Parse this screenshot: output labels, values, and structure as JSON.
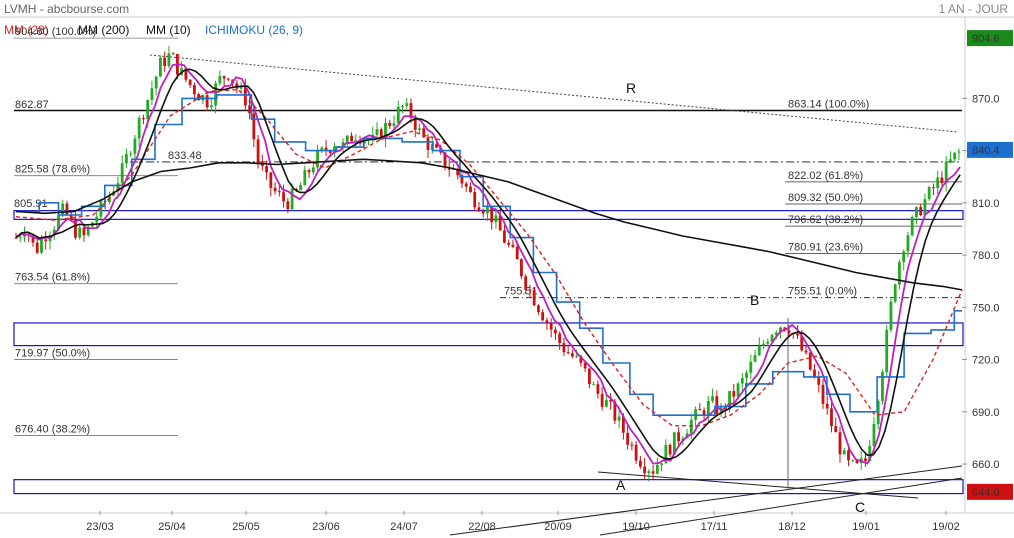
{
  "header": {
    "title": "LVMH - abcbourse.com",
    "period": "1 AN - JOUR",
    "legend": [
      {
        "label": "MM (28)",
        "color": "#e02020"
      },
      {
        "label": "MM (200)",
        "color": "#111111"
      },
      {
        "label": "MM (10)",
        "color": "#111111"
      },
      {
        "label": "ICHIMOKU (26, 9)",
        "color": "#1f6fd0"
      }
    ]
  },
  "chart_data": {
    "type": "candlestick",
    "x_ticks": [
      "23/03",
      "25/04",
      "25/05",
      "23/06",
      "24/07",
      "22/08",
      "20/09",
      "19/10",
      "17/11",
      "18/12",
      "19/01",
      "19/02"
    ],
    "y_ticks": [
      "870.0",
      "840.0",
      "810.0",
      "780.0",
      "750.0",
      "720.0",
      "690.0",
      "660.0"
    ],
    "y_range": [
      633,
      915
    ],
    "price_tags": [
      {
        "text": "904.6",
        "value": 904.6,
        "bg": "#1a8a1a"
      },
      {
        "text": "840.4",
        "value": 840.4,
        "bg": "#1f6fd0"
      },
      {
        "text": "644.0",
        "value": 644.0,
        "bg": "#d01010"
      }
    ],
    "fib_left": [
      {
        "label": "904.60  (100.0%)",
        "value": 904.6
      },
      {
        "label": "862.87",
        "value": 862.87
      },
      {
        "label": "825.58  (78.6%)",
        "value": 825.58
      },
      {
        "label": "763.54  (61.8%)",
        "value": 763.54
      },
      {
        "label": "719.97  (50.0%)",
        "value": 719.97
      },
      {
        "label": "676.40  (38.2%)",
        "value": 676.4
      }
    ],
    "fib_right": [
      {
        "label": "863.14  (100.0%)",
        "value": 863.14
      },
      {
        "label": "822.02  (61.8%)",
        "value": 822.02
      },
      {
        "label": "809.32  (50.0%)",
        "value": 809.32
      },
      {
        "label": "796.62  (38.2%)",
        "value": 796.62
      },
      {
        "label": "780.91  (23.6%)",
        "value": 780.91
      },
      {
        "label": "755.51  (0.0%)",
        "value": 755.51
      }
    ],
    "level_labels": [
      {
        "text": "833.48",
        "value": 833.48
      },
      {
        "text": "805.91",
        "value": 805.91
      },
      {
        "text": "755.51",
        "value": 755.51
      }
    ],
    "wave_labels": [
      "R",
      "A",
      "B",
      "C"
    ],
    "zones": [
      {
        "from": 800.5,
        "to": 805.5
      },
      {
        "from": 728,
        "to": 741
      },
      {
        "from": 643,
        "to": 651
      }
    ],
    "series": {
      "close": [
        [
          0,
          790
        ],
        [
          5,
          797
        ],
        [
          10,
          782
        ],
        [
          15,
          792
        ],
        [
          20,
          798
        ],
        [
          25,
          806
        ],
        [
          30,
          795
        ],
        [
          35,
          790
        ],
        [
          40,
          800
        ],
        [
          45,
          808
        ],
        [
          50,
          818
        ],
        [
          55,
          828
        ],
        [
          60,
          845
        ],
        [
          65,
          860
        ],
        [
          70,
          875
        ],
        [
          75,
          890
        ],
        [
          80,
          895
        ],
        [
          85,
          885
        ],
        [
          90,
          878
        ],
        [
          95,
          872
        ],
        [
          100,
          868
        ],
        [
          105,
          880
        ],
        [
          110,
          885
        ],
        [
          115,
          875
        ],
        [
          120,
          868
        ],
        [
          125,
          835
        ],
        [
          130,
          822
        ],
        [
          135,
          815
        ],
        [
          140,
          810
        ],
        [
          145,
          815
        ],
        [
          150,
          825
        ],
        [
          155,
          835
        ],
        [
          160,
          840
        ],
        [
          165,
          845
        ],
        [
          170,
          842
        ],
        [
          175,
          850
        ],
        [
          180,
          848
        ],
        [
          185,
          845
        ],
        [
          190,
          852
        ],
        [
          195,
          858
        ],
        [
          200,
          865
        ],
        [
          205,
          860
        ],
        [
          210,
          848
        ],
        [
          215,
          842
        ],
        [
          220,
          835
        ],
        [
          225,
          830
        ],
        [
          230,
          825
        ],
        [
          235,
          815
        ],
        [
          240,
          810
        ],
        [
          245,
          805
        ],
        [
          250,
          795
        ],
        [
          255,
          785
        ],
        [
          260,
          775
        ],
        [
          265,
          762
        ],
        [
          270,
          752
        ],
        [
          275,
          742
        ],
        [
          280,
          732
        ],
        [
          285,
          725
        ],
        [
          290,
          720
        ],
        [
          295,
          712
        ],
        [
          300,
          702
        ],
        [
          305,
          696
        ],
        [
          310,
          688
        ],
        [
          315,
          678
        ],
        [
          320,
          668
        ],
        [
          325,
          660
        ],
        [
          330,
          657
        ],
        [
          335,
          665
        ],
        [
          340,
          672
        ],
        [
          345,
          678
        ],
        [
          350,
          685
        ],
        [
          355,
          690
        ],
        [
          360,
          695
        ],
        [
          365,
          690
        ],
        [
          370,
          698
        ],
        [
          375,
          705
        ],
        [
          380,
          715
        ],
        [
          385,
          725
        ],
        [
          390,
          735
        ],
        [
          395,
          740
        ],
        [
          400,
          740
        ],
        [
          405,
          730
        ],
        [
          410,
          718
        ],
        [
          415,
          705
        ],
        [
          420,
          690
        ],
        [
          425,
          675
        ],
        [
          430,
          660
        ],
        [
          435,
          657
        ],
        [
          440,
          662
        ],
        [
          445,
          690
        ],
        [
          450,
          725
        ],
        [
          455,
          765
        ],
        [
          460,
          788
        ],
        [
          465,
          800
        ],
        [
          470,
          810
        ],
        [
          475,
          818
        ],
        [
          480,
          826
        ],
        [
          485,
          835
        ],
        [
          490,
          840.4
        ]
      ],
      "ma200": [
        [
          0,
          805
        ],
        [
          15,
          804
        ],
        [
          30,
          805
        ],
        [
          45,
          812
        ],
        [
          60,
          822
        ],
        [
          75,
          828
        ],
        [
          90,
          830
        ],
        [
          105,
          833
        ],
        [
          120,
          833
        ],
        [
          135,
          832
        ],
        [
          150,
          833
        ],
        [
          165,
          834
        ],
        [
          180,
          835
        ],
        [
          195,
          834
        ],
        [
          210,
          833
        ],
        [
          225,
          830
        ],
        [
          240,
          826
        ],
        [
          255,
          822
        ],
        [
          270,
          816
        ],
        [
          285,
          810
        ],
        [
          300,
          804
        ],
        [
          315,
          799
        ],
        [
          330,
          795
        ],
        [
          345,
          791
        ],
        [
          360,
          788
        ],
        [
          375,
          785
        ],
        [
          390,
          782
        ],
        [
          405,
          778
        ],
        [
          420,
          774
        ],
        [
          435,
          770
        ],
        [
          450,
          767
        ],
        [
          465,
          764
        ],
        [
          480,
          762
        ],
        [
          490,
          760
        ]
      ],
      "ma28": [
        [
          0,
          802
        ],
        [
          20,
          800
        ],
        [
          40,
          803
        ],
        [
          60,
          826
        ],
        [
          80,
          860
        ],
        [
          100,
          874
        ],
        [
          115,
          875
        ],
        [
          130,
          858
        ],
        [
          145,
          838
        ],
        [
          160,
          830
        ],
        [
          175,
          838
        ],
        [
          190,
          847
        ],
        [
          205,
          851
        ],
        [
          220,
          846
        ],
        [
          235,
          832
        ],
        [
          250,
          812
        ],
        [
          265,
          792
        ],
        [
          280,
          768
        ],
        [
          295,
          740
        ],
        [
          310,
          716
        ],
        [
          325,
          694
        ],
        [
          340,
          682
        ],
        [
          355,
          682
        ],
        [
          370,
          688
        ],
        [
          385,
          700
        ],
        [
          400,
          718
        ],
        [
          415,
          722
        ],
        [
          430,
          712
        ],
        [
          445,
          688
        ],
        [
          460,
          690
        ],
        [
          475,
          720
        ],
        [
          490,
          760
        ]
      ],
      "kijun": [
        [
          0,
          805
        ],
        [
          12,
          805
        ],
        [
          12,
          810
        ],
        [
          22,
          810
        ],
        [
          22,
          803
        ],
        [
          34,
          803
        ],
        [
          34,
          808
        ],
        [
          46,
          808
        ],
        [
          46,
          820
        ],
        [
          60,
          820
        ],
        [
          60,
          835
        ],
        [
          72,
          835
        ],
        [
          72,
          855
        ],
        [
          86,
          855
        ],
        [
          86,
          870
        ],
        [
          104,
          870
        ],
        [
          104,
          872
        ],
        [
          122,
          872
        ],
        [
          122,
          858
        ],
        [
          134,
          858
        ],
        [
          134,
          845
        ],
        [
          150,
          845
        ],
        [
          150,
          840
        ],
        [
          166,
          840
        ],
        [
          166,
          842
        ],
        [
          180,
          842
        ],
        [
          180,
          847
        ],
        [
          200,
          847
        ],
        [
          200,
          845
        ],
        [
          216,
          845
        ],
        [
          216,
          840
        ],
        [
          230,
          840
        ],
        [
          230,
          825
        ],
        [
          242,
          825
        ],
        [
          242,
          808
        ],
        [
          256,
          808
        ],
        [
          256,
          790
        ],
        [
          268,
          790
        ],
        [
          268,
          770
        ],
        [
          280,
          770
        ],
        [
          280,
          753
        ],
        [
          292,
          753
        ],
        [
          292,
          738
        ],
        [
          304,
          738
        ],
        [
          304,
          718
        ],
        [
          318,
          718
        ],
        [
          318,
          700
        ],
        [
          330,
          700
        ],
        [
          330,
          688
        ],
        [
          346,
          688
        ],
        [
          346,
          688
        ],
        [
          362,
          688
        ],
        [
          362,
          693
        ],
        [
          378,
          693
        ],
        [
          378,
          706
        ],
        [
          392,
          706
        ],
        [
          392,
          713
        ],
        [
          408,
          713
        ],
        [
          408,
          710
        ],
        [
          420,
          710
        ],
        [
          420,
          700
        ],
        [
          432,
          700
        ],
        [
          432,
          690
        ],
        [
          446,
          690
        ],
        [
          446,
          710
        ],
        [
          460,
          710
        ],
        [
          460,
          735
        ],
        [
          474,
          735
        ],
        [
          474,
          737
        ],
        [
          486,
          737
        ],
        [
          486,
          748
        ],
        [
          490,
          748
        ]
      ]
    }
  }
}
